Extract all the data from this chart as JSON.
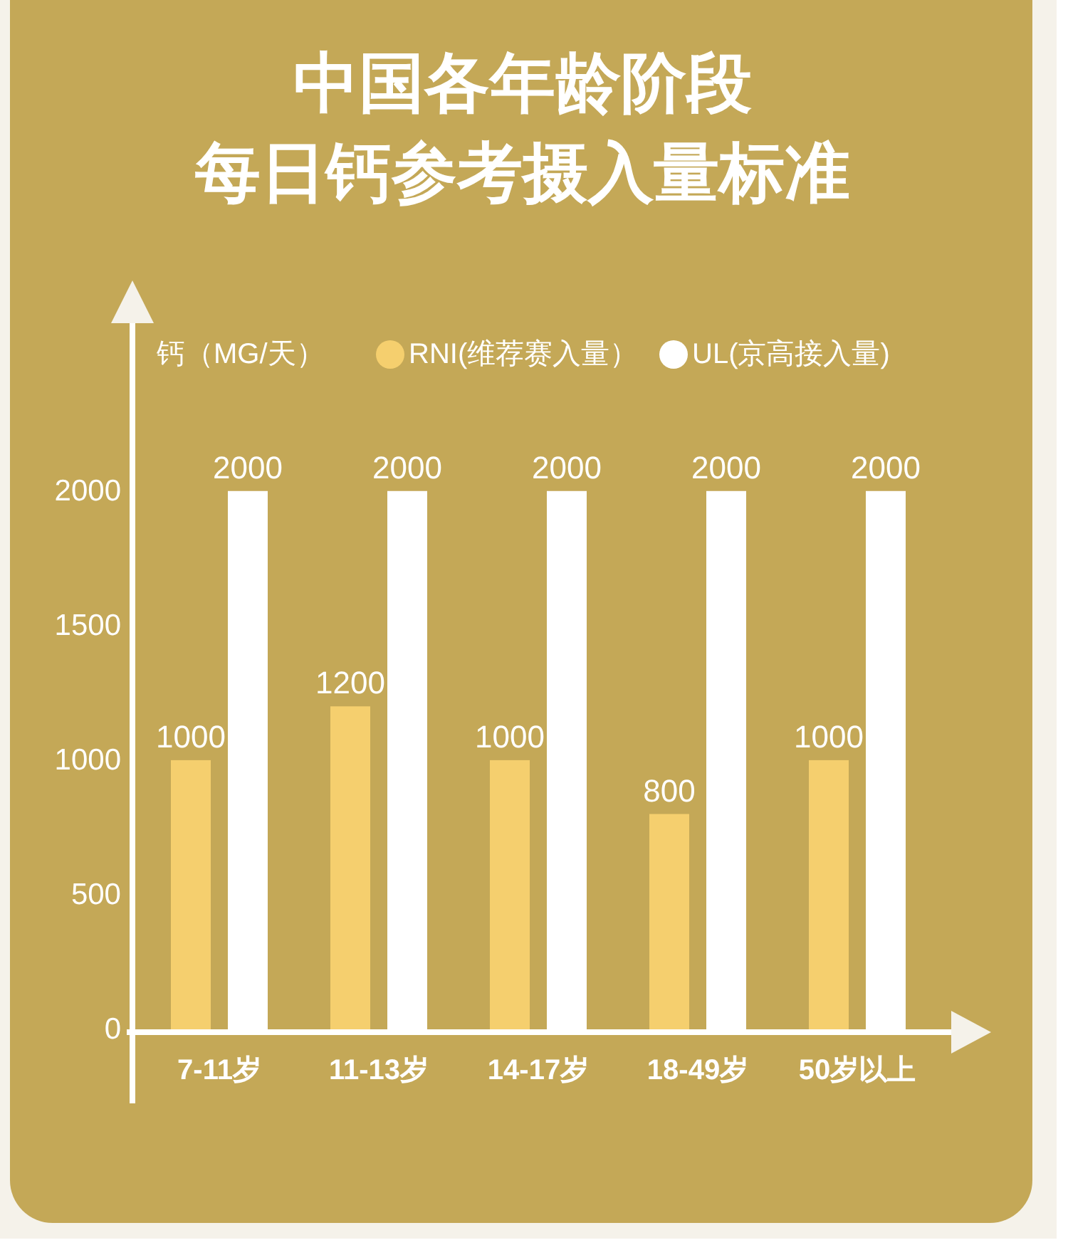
{
  "chart_data": {
    "type": "bar",
    "title": "中国各年龄阶段",
    "subtitle": "每日钙参考摄入量标准",
    "ylabel": "钙（MG/天）",
    "categories": [
      "7-11岁",
      "11-13岁",
      "14-17岁",
      "18-49岁",
      "50岁以上"
    ],
    "series": [
      {
        "name": "RNI(维荐赛入量）",
        "color": "#f5cf6e",
        "values": [
          1000,
          1200,
          1000,
          800,
          1000
        ]
      },
      {
        "name": "UL(京高接入量)",
        "color": "#ffffff",
        "values": [
          2000,
          2000,
          2000,
          2000,
          2000
        ]
      }
    ],
    "ylim": [
      0,
      2650
    ],
    "yticks": [
      0,
      500,
      1000,
      1500,
      2000
    ],
    "data_labels": true,
    "legend": "top"
  }
}
